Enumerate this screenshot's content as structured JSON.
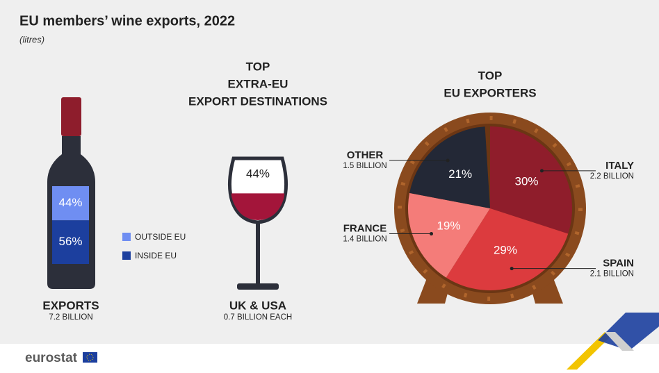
{
  "title": "EU members’ wine exports, 2022",
  "subtitle": "(litres)",
  "logo": "eurostat",
  "chart_data": [
    {
      "type": "bar",
      "label": "EXPORTS",
      "total_label": "7.2 BILLION",
      "ylim": [
        0,
        100
      ],
      "series": [
        {
          "name": "OUTSIDE EU",
          "color": "#6f8ef2",
          "values": [
            44
          ],
          "value_labels": [
            "44%"
          ]
        },
        {
          "name": "INSIDE EU",
          "color": "#1c3f9e",
          "values": [
            56
          ],
          "value_labels": [
            "56%"
          ]
        }
      ]
    },
    {
      "type": "glass",
      "title": [
        "TOP",
        "EXTRA-EU",
        "EXPORT DESTINATIONS"
      ],
      "values": [
        44
      ],
      "value_labels": [
        "44%"
      ],
      "label": "UK & USA",
      "sublabel": "0.7 BILLION EACH",
      "color": "#a3153a"
    },
    {
      "type": "pie",
      "title": [
        "TOP",
        "EU EXPORTERS"
      ],
      "categories": [
        "ITALY",
        "SPAIN",
        "FRANCE",
        "OTHER"
      ],
      "sublabels": [
        "2.2 BILLION",
        "2.1 BILLION",
        "1.4 BILLION",
        "1.5 BILLION"
      ],
      "values": [
        30,
        29,
        19,
        21
      ],
      "value_labels": [
        "30%",
        "29%",
        "19%",
        "21%"
      ],
      "colors": [
        "#8f1d2b",
        "#dc3b3e",
        "#f47c79",
        "#232836"
      ]
    }
  ]
}
